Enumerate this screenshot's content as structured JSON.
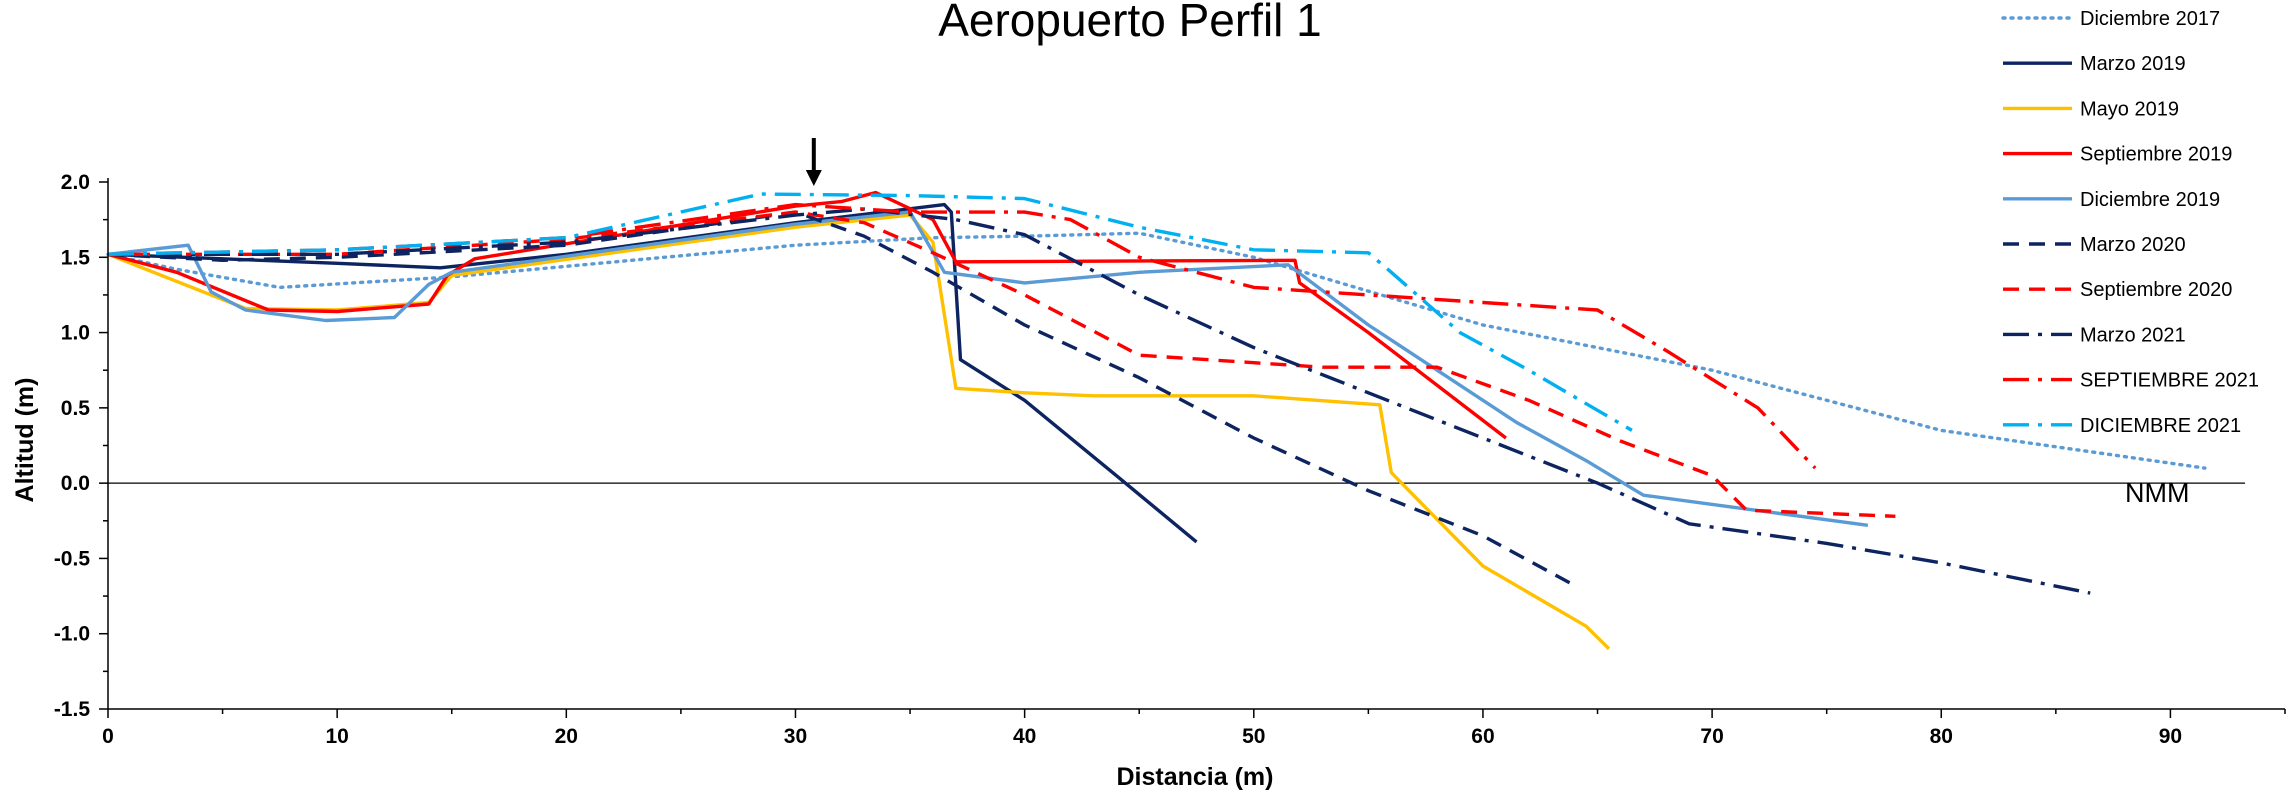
{
  "chart_data": {
    "type": "line",
    "title": "Aeropuerto Perfil 1",
    "xlabel": "Distancia (m)",
    "ylabel": "Altitud (m)",
    "xlim": [
      0,
      95
    ],
    "ylim": [
      -1.5,
      2.0
    ],
    "x_ticks": [
      "0",
      "10",
      "20",
      "30",
      "40",
      "50",
      "60",
      "70",
      "80",
      "90"
    ],
    "y_ticks": [
      "2.0",
      "1.5",
      "1.0",
      "0.5",
      "0.0",
      "-0.5",
      "-1.0",
      "-1.5"
    ],
    "grid": false,
    "legend_position": "top-right",
    "reference_line": {
      "y": 0.0,
      "label": "NMM"
    },
    "marker_arrow_x": 30.8,
    "series": [
      {
        "name": "Diciembre 2017",
        "color": "#5b9bd5",
        "style": "dotted",
        "points": [
          [
            0,
            1.52
          ],
          [
            3,
            1.42
          ],
          [
            7.5,
            1.3
          ],
          [
            15,
            1.37
          ],
          [
            30,
            1.58
          ],
          [
            36,
            1.63
          ],
          [
            40,
            1.64
          ],
          [
            45,
            1.66
          ],
          [
            50,
            1.5
          ],
          [
            60,
            1.05
          ],
          [
            70,
            0.75
          ],
          [
            80,
            0.35
          ],
          [
            91.5,
            0.1
          ]
        ]
      },
      {
        "name": "Marzo 2019",
        "color": "#0d2460",
        "style": "solid",
        "points": [
          [
            0,
            1.52
          ],
          [
            10,
            1.46
          ],
          [
            14.5,
            1.43
          ],
          [
            20,
            1.52
          ],
          [
            30,
            1.73
          ],
          [
            36.5,
            1.85
          ],
          [
            36.8,
            1.8
          ],
          [
            37.2,
            0.82
          ],
          [
            40,
            0.55
          ],
          [
            44,
            0.05
          ],
          [
            47.5,
            -0.39
          ]
        ]
      },
      {
        "name": "Mayo 2019",
        "color": "#ffc000",
        "style": "solid",
        "points": [
          [
            0,
            1.52
          ],
          [
            6,
            1.16
          ],
          [
            10,
            1.15
          ],
          [
            14,
            1.2
          ],
          [
            15,
            1.38
          ],
          [
            30,
            1.7
          ],
          [
            35,
            1.78
          ],
          [
            36,
            1.6
          ],
          [
            37,
            0.63
          ],
          [
            40,
            0.6
          ],
          [
            43,
            0.58
          ],
          [
            46,
            0.58
          ],
          [
            50,
            0.58
          ],
          [
            55.5,
            0.52
          ],
          [
            56,
            0.07
          ],
          [
            60,
            -0.55
          ],
          [
            64.5,
            -0.95
          ],
          [
            65.5,
            -1.1
          ]
        ]
      },
      {
        "name": "Septiembre 2019",
        "color": "#ff0000",
        "style": "solid",
        "points": [
          [
            0,
            1.52
          ],
          [
            3,
            1.4
          ],
          [
            7,
            1.15
          ],
          [
            10,
            1.14
          ],
          [
            14,
            1.19
          ],
          [
            14.8,
            1.38
          ],
          [
            16,
            1.49
          ],
          [
            30,
            1.84
          ],
          [
            32,
            1.87
          ],
          [
            33.5,
            1.93
          ],
          [
            36,
            1.75
          ],
          [
            37,
            1.47
          ],
          [
            51.8,
            1.48
          ],
          [
            52,
            1.33
          ],
          [
            55,
            1.0
          ],
          [
            61,
            0.3
          ]
        ]
      },
      {
        "name": "Diciembre 2019",
        "color": "#5b9bd5",
        "style": "solid",
        "points": [
          [
            0,
            1.52
          ],
          [
            3.5,
            1.58
          ],
          [
            4.5,
            1.27
          ],
          [
            6,
            1.15
          ],
          [
            9.5,
            1.08
          ],
          [
            12.5,
            1.1
          ],
          [
            14,
            1.32
          ],
          [
            15,
            1.4
          ],
          [
            30,
            1.72
          ],
          [
            35,
            1.8
          ],
          [
            36.5,
            1.4
          ],
          [
            40,
            1.33
          ],
          [
            45,
            1.4
          ],
          [
            51.5,
            1.45
          ],
          [
            55,
            1.05
          ],
          [
            61.5,
            0.4
          ],
          [
            64.5,
            0.15
          ],
          [
            67,
            -0.08
          ],
          [
            76.8,
            -0.28
          ]
        ]
      },
      {
        "name": "Marzo 2020",
        "color": "#0d2460",
        "style": "dashed",
        "points": [
          [
            0,
            1.52
          ],
          [
            5,
            1.48
          ],
          [
            10,
            1.5
          ],
          [
            20,
            1.58
          ],
          [
            30,
            1.8
          ],
          [
            33,
            1.64
          ],
          [
            36,
            1.4
          ],
          [
            40,
            1.05
          ],
          [
            45,
            0.7
          ],
          [
            50,
            0.3
          ],
          [
            55,
            -0.05
          ],
          [
            60,
            -0.35
          ],
          [
            64,
            -0.68
          ]
        ]
      },
      {
        "name": "Septiembre 2020",
        "color": "#ff0000",
        "style": "dashed",
        "points": [
          [
            0,
            1.52
          ],
          [
            10,
            1.52
          ],
          [
            20,
            1.62
          ],
          [
            30,
            1.8
          ],
          [
            33,
            1.73
          ],
          [
            36,
            1.53
          ],
          [
            40,
            1.25
          ],
          [
            45,
            0.85
          ],
          [
            50,
            0.8
          ],
          [
            53,
            0.77
          ],
          [
            58,
            0.77
          ],
          [
            62,
            0.55
          ],
          [
            66,
            0.28
          ],
          [
            70,
            0.05
          ],
          [
            71.5,
            -0.18
          ],
          [
            78,
            -0.22
          ]
        ]
      },
      {
        "name": "Marzo 2021",
        "color": "#0d2460",
        "style": "dashdot",
        "points": [
          [
            0,
            1.52
          ],
          [
            10,
            1.52
          ],
          [
            20,
            1.6
          ],
          [
            30,
            1.78
          ],
          [
            33,
            1.82
          ],
          [
            37,
            1.75
          ],
          [
            40,
            1.65
          ],
          [
            45,
            1.25
          ],
          [
            50,
            0.9
          ],
          [
            60,
            0.3
          ],
          [
            65,
            0.0
          ],
          [
            69,
            -0.27
          ],
          [
            75,
            -0.4
          ],
          [
            80,
            -0.53
          ],
          [
            86.5,
            -0.73
          ]
        ]
      },
      {
        "name": "SEPTIEMBRE 2021",
        "color": "#ff0000",
        "style": "dashdot",
        "points": [
          [
            0,
            1.52
          ],
          [
            10,
            1.55
          ],
          [
            20,
            1.63
          ],
          [
            30,
            1.85
          ],
          [
            35,
            1.8
          ],
          [
            40,
            1.8
          ],
          [
            42,
            1.75
          ],
          [
            45,
            1.5
          ],
          [
            50,
            1.3
          ],
          [
            55,
            1.25
          ],
          [
            60,
            1.2
          ],
          [
            65,
            1.15
          ],
          [
            68,
            0.88
          ],
          [
            72,
            0.5
          ],
          [
            74.5,
            0.1
          ]
        ]
      },
      {
        "name": "DICIEMBRE 2021",
        "color": "#00b0f0",
        "style": "dashdot",
        "points": [
          [
            0,
            1.52
          ],
          [
            10,
            1.55
          ],
          [
            20,
            1.63
          ],
          [
            28.5,
            1.92
          ],
          [
            35,
            1.91
          ],
          [
            40,
            1.89
          ],
          [
            45,
            1.7
          ],
          [
            50,
            1.55
          ],
          [
            55,
            1.53
          ],
          [
            56,
            1.4
          ],
          [
            59,
            1.0
          ],
          [
            62,
            0.75
          ],
          [
            66.5,
            0.35
          ]
        ]
      }
    ]
  }
}
